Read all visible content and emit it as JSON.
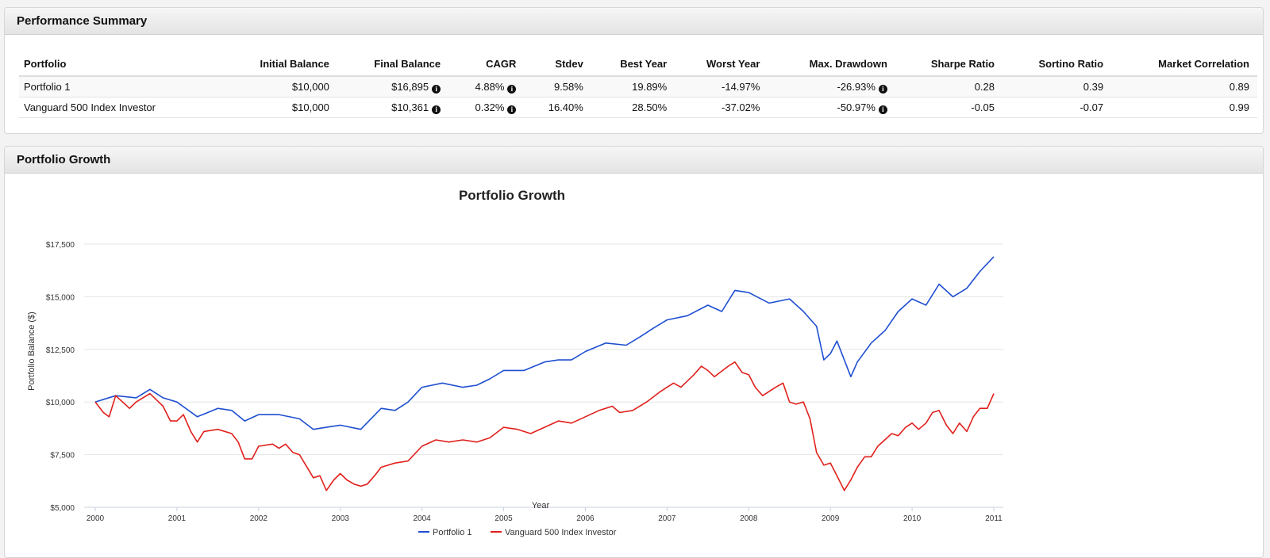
{
  "summary": {
    "title": "Performance Summary",
    "headers": [
      "Portfolio",
      "Initial Balance",
      "Final Balance",
      "CAGR",
      "Stdev",
      "Best Year",
      "Worst Year",
      "Max. Drawdown",
      "Sharpe Ratio",
      "Sortino Ratio",
      "Market Correlation"
    ],
    "rows": [
      [
        "Portfolio 1",
        "$10,000",
        "$16,895",
        "4.88%",
        "9.58%",
        "19.89%",
        "-14.97%",
        "-26.93%",
        "0.28",
        "0.39",
        "0.89"
      ],
      [
        "Vanguard 500 Index Investor",
        "$10,000",
        "$10,361",
        "0.32%",
        "16.40%",
        "28.50%",
        "-37.02%",
        "-50.97%",
        "-0.05",
        "-0.07",
        "0.99"
      ]
    ],
    "info_icon": "info-icon"
  },
  "growth": {
    "title": "Portfolio Growth"
  },
  "chart_data": {
    "type": "line",
    "title": "Portfolio Growth",
    "xlabel": "Year",
    "ylabel": "Portfolio Balance ($)",
    "ylim": [
      5000,
      17500
    ],
    "xlim": [
      2000,
      2011
    ],
    "y_ticks": [
      5000,
      7500,
      10000,
      12500,
      15000,
      17500
    ],
    "y_tick_labels": [
      "$5,000",
      "$7,500",
      "$10,000",
      "$12,500",
      "$15,000",
      "$17,500"
    ],
    "x_ticks": [
      "2000",
      "2001",
      "2002",
      "2003",
      "2004",
      "2005",
      "2006",
      "2007",
      "2008",
      "2009",
      "2010",
      "2011"
    ],
    "grid": true,
    "legend": "bottom-center",
    "series": [
      {
        "name": "Portfolio 1",
        "color": "#1f4fd1",
        "points": [
          [
            2000.0,
            10000
          ],
          [
            2000.25,
            10300
          ],
          [
            2000.5,
            10200
          ],
          [
            2000.67,
            10600
          ],
          [
            2000.83,
            10200
          ],
          [
            2001.0,
            10000
          ],
          [
            2001.25,
            9300
          ],
          [
            2001.5,
            9700
          ],
          [
            2001.67,
            9600
          ],
          [
            2001.83,
            9100
          ],
          [
            2002.0,
            9400
          ],
          [
            2002.25,
            9400
          ],
          [
            2002.5,
            9200
          ],
          [
            2002.67,
            8700
          ],
          [
            2002.83,
            8800
          ],
          [
            2003.0,
            8900
          ],
          [
            2003.25,
            8700
          ],
          [
            2003.5,
            9700
          ],
          [
            2003.67,
            9600
          ],
          [
            2003.83,
            10000
          ],
          [
            2004.0,
            10700
          ],
          [
            2004.25,
            10900
          ],
          [
            2004.5,
            10700
          ],
          [
            2004.67,
            10800
          ],
          [
            2004.83,
            11100
          ],
          [
            2005.0,
            11500
          ],
          [
            2005.25,
            11500
          ],
          [
            2005.5,
            11900
          ],
          [
            2005.67,
            12000
          ],
          [
            2005.83,
            12000
          ],
          [
            2006.0,
            12400
          ],
          [
            2006.25,
            12800
          ],
          [
            2006.5,
            12700
          ],
          [
            2006.67,
            13100
          ],
          [
            2006.83,
            13500
          ],
          [
            2007.0,
            13900
          ],
          [
            2007.25,
            14100
          ],
          [
            2007.5,
            14600
          ],
          [
            2007.67,
            14300
          ],
          [
            2007.83,
            15300
          ],
          [
            2008.0,
            15200
          ],
          [
            2008.25,
            14700
          ],
          [
            2008.5,
            14900
          ],
          [
            2008.67,
            14300
          ],
          [
            2008.83,
            13600
          ],
          [
            2008.92,
            12000
          ],
          [
            2009.0,
            12300
          ],
          [
            2009.08,
            12900
          ],
          [
            2009.25,
            11200
          ],
          [
            2009.33,
            11900
          ],
          [
            2009.5,
            12800
          ],
          [
            2009.67,
            13400
          ],
          [
            2009.83,
            14300
          ],
          [
            2010.0,
            14900
          ],
          [
            2010.17,
            14600
          ],
          [
            2010.33,
            15600
          ],
          [
            2010.5,
            15000
          ],
          [
            2010.67,
            15400
          ],
          [
            2010.83,
            16200
          ],
          [
            2011.0,
            16900
          ]
        ]
      },
      {
        "name": "Vanguard 500 Index Investor",
        "color": "#e0201c",
        "points": [
          [
            2000.0,
            10000
          ],
          [
            2000.1,
            9500
          ],
          [
            2000.17,
            9300
          ],
          [
            2000.25,
            10300
          ],
          [
            2000.42,
            9700
          ],
          [
            2000.5,
            10000
          ],
          [
            2000.67,
            10400
          ],
          [
            2000.83,
            9800
          ],
          [
            2000.92,
            9100
          ],
          [
            2001.0,
            9100
          ],
          [
            2001.08,
            9400
          ],
          [
            2001.17,
            8600
          ],
          [
            2001.25,
            8100
          ],
          [
            2001.33,
            8600
          ],
          [
            2001.5,
            8700
          ],
          [
            2001.67,
            8500
          ],
          [
            2001.75,
            8100
          ],
          [
            2001.83,
            7300
          ],
          [
            2001.92,
            7300
          ],
          [
            2002.0,
            7900
          ],
          [
            2002.17,
            8000
          ],
          [
            2002.25,
            7800
          ],
          [
            2002.33,
            8000
          ],
          [
            2002.42,
            7600
          ],
          [
            2002.5,
            7500
          ],
          [
            2002.67,
            6400
          ],
          [
            2002.75,
            6500
          ],
          [
            2002.83,
            5800
          ],
          [
            2002.92,
            6300
          ],
          [
            2003.0,
            6600
          ],
          [
            2003.08,
            6300
          ],
          [
            2003.17,
            6100
          ],
          [
            2003.25,
            6000
          ],
          [
            2003.33,
            6100
          ],
          [
            2003.42,
            6500
          ],
          [
            2003.5,
            6900
          ],
          [
            2003.67,
            7100
          ],
          [
            2003.83,
            7200
          ],
          [
            2004.0,
            7900
          ],
          [
            2004.17,
            8200
          ],
          [
            2004.33,
            8100
          ],
          [
            2004.5,
            8200
          ],
          [
            2004.67,
            8100
          ],
          [
            2004.83,
            8300
          ],
          [
            2005.0,
            8800
          ],
          [
            2005.17,
            8700
          ],
          [
            2005.33,
            8500
          ],
          [
            2005.5,
            8800
          ],
          [
            2005.67,
            9100
          ],
          [
            2005.83,
            9000
          ],
          [
            2006.0,
            9300
          ],
          [
            2006.17,
            9600
          ],
          [
            2006.33,
            9800
          ],
          [
            2006.42,
            9500
          ],
          [
            2006.58,
            9600
          ],
          [
            2006.75,
            10000
          ],
          [
            2006.92,
            10500
          ],
          [
            2007.0,
            10700
          ],
          [
            2007.08,
            10900
          ],
          [
            2007.17,
            10700
          ],
          [
            2007.33,
            11300
          ],
          [
            2007.42,
            11700
          ],
          [
            2007.5,
            11500
          ],
          [
            2007.58,
            11200
          ],
          [
            2007.75,
            11700
          ],
          [
            2007.83,
            11900
          ],
          [
            2007.92,
            11400
          ],
          [
            2008.0,
            11300
          ],
          [
            2008.08,
            10700
          ],
          [
            2008.17,
            10300
          ],
          [
            2008.33,
            10700
          ],
          [
            2008.42,
            10900
          ],
          [
            2008.5,
            10000
          ],
          [
            2008.58,
            9900
          ],
          [
            2008.67,
            10000
          ],
          [
            2008.75,
            9200
          ],
          [
            2008.83,
            7600
          ],
          [
            2008.92,
            7000
          ],
          [
            2009.0,
            7100
          ],
          [
            2009.08,
            6500
          ],
          [
            2009.17,
            5800
          ],
          [
            2009.25,
            6300
          ],
          [
            2009.33,
            6900
          ],
          [
            2009.42,
            7400
          ],
          [
            2009.5,
            7400
          ],
          [
            2009.58,
            7900
          ],
          [
            2009.75,
            8500
          ],
          [
            2009.83,
            8400
          ],
          [
            2009.92,
            8800
          ],
          [
            2010.0,
            9000
          ],
          [
            2010.08,
            8700
          ],
          [
            2010.17,
            9000
          ],
          [
            2010.25,
            9500
          ],
          [
            2010.33,
            9600
          ],
          [
            2010.42,
            8900
          ],
          [
            2010.5,
            8500
          ],
          [
            2010.58,
            9000
          ],
          [
            2010.67,
            8600
          ],
          [
            2010.75,
            9300
          ],
          [
            2010.83,
            9700
          ],
          [
            2010.92,
            9700
          ],
          [
            2011.0,
            10400
          ]
        ]
      }
    ]
  }
}
